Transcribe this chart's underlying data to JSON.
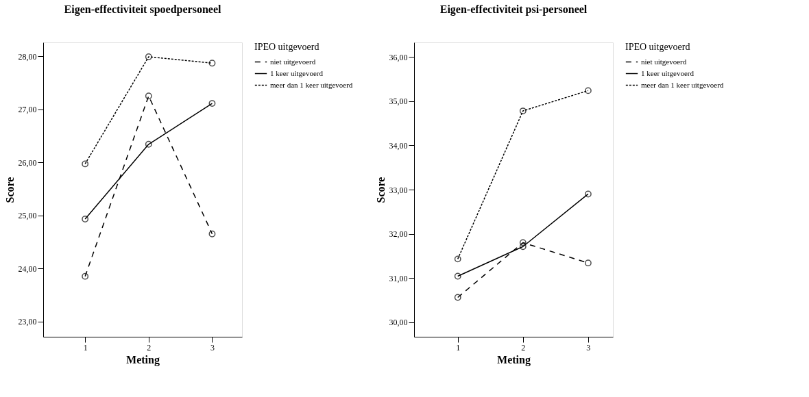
{
  "chart_data": [
    {
      "type": "line",
      "title": "Eigen-effectiviteit spoedpersoneel",
      "xlabel": "Meting",
      "ylabel": "Score",
      "legend_title": "IPEO uitgevoerd",
      "legend": "right",
      "marker": "circle",
      "x": [
        1,
        2,
        3
      ],
      "xlim": [
        0.34,
        3.47
      ],
      "xticks": [
        1,
        2,
        3
      ],
      "ylim": [
        22.71,
        28.26
      ],
      "yticks": [
        {
          "value": 23,
          "label": "23,00"
        },
        {
          "value": 24,
          "label": "24,00"
        },
        {
          "value": 25,
          "label": "25,00"
        },
        {
          "value": 26,
          "label": "26,00"
        },
        {
          "value": 27,
          "label": "27,00"
        },
        {
          "value": 28,
          "label": "28,00"
        }
      ],
      "series": [
        {
          "name": "niet uitgevoerd",
          "color": "#000000",
          "line_style": "dashed",
          "values": [
            23.85,
            27.25,
            24.65
          ]
        },
        {
          "name": "1 keer uitgevoerd",
          "color": "#000000",
          "line_style": "solid",
          "values": [
            24.93,
            26.34,
            27.11
          ]
        },
        {
          "name": "meer dan 1 keer uitgevoerd",
          "color": "#000000",
          "line_style": "dotted",
          "values": [
            25.97,
            27.99,
            27.87
          ]
        }
      ]
    },
    {
      "type": "line",
      "title": "Eigen-effectiviteit psi-personeel",
      "xlabel": "Meting",
      "ylabel": "Score",
      "legend_title": "IPEO uitgevoerd",
      "legend": "right",
      "marker": "circle",
      "x": [
        1,
        2,
        3
      ],
      "xlim": [
        0.33,
        3.38
      ],
      "xticks": [
        1,
        2,
        3
      ],
      "ylim": [
        29.67,
        36.33
      ],
      "yticks": [
        {
          "value": 30,
          "label": "30,00"
        },
        {
          "value": 31,
          "label": "31,00"
        },
        {
          "value": 32,
          "label": "32,00"
        },
        {
          "value": 33,
          "label": "33,00"
        },
        {
          "value": 34,
          "label": "34,00"
        },
        {
          "value": 35,
          "label": "35,00"
        },
        {
          "value": 36,
          "label": "36,00"
        }
      ],
      "series": [
        {
          "name": "niet uitgevoerd",
          "color": "#000000",
          "line_style": "dashed",
          "values": [
            30.56,
            31.8,
            31.34
          ]
        },
        {
          "name": "1 keer uitgevoerd",
          "color": "#000000",
          "line_style": "solid",
          "values": [
            31.04,
            31.71,
            32.9
          ]
        },
        {
          "name": "meer dan 1 keer uitgevoerd",
          "color": "#000000",
          "line_style": "dotted",
          "values": [
            31.43,
            34.78,
            35.24
          ]
        }
      ]
    }
  ]
}
